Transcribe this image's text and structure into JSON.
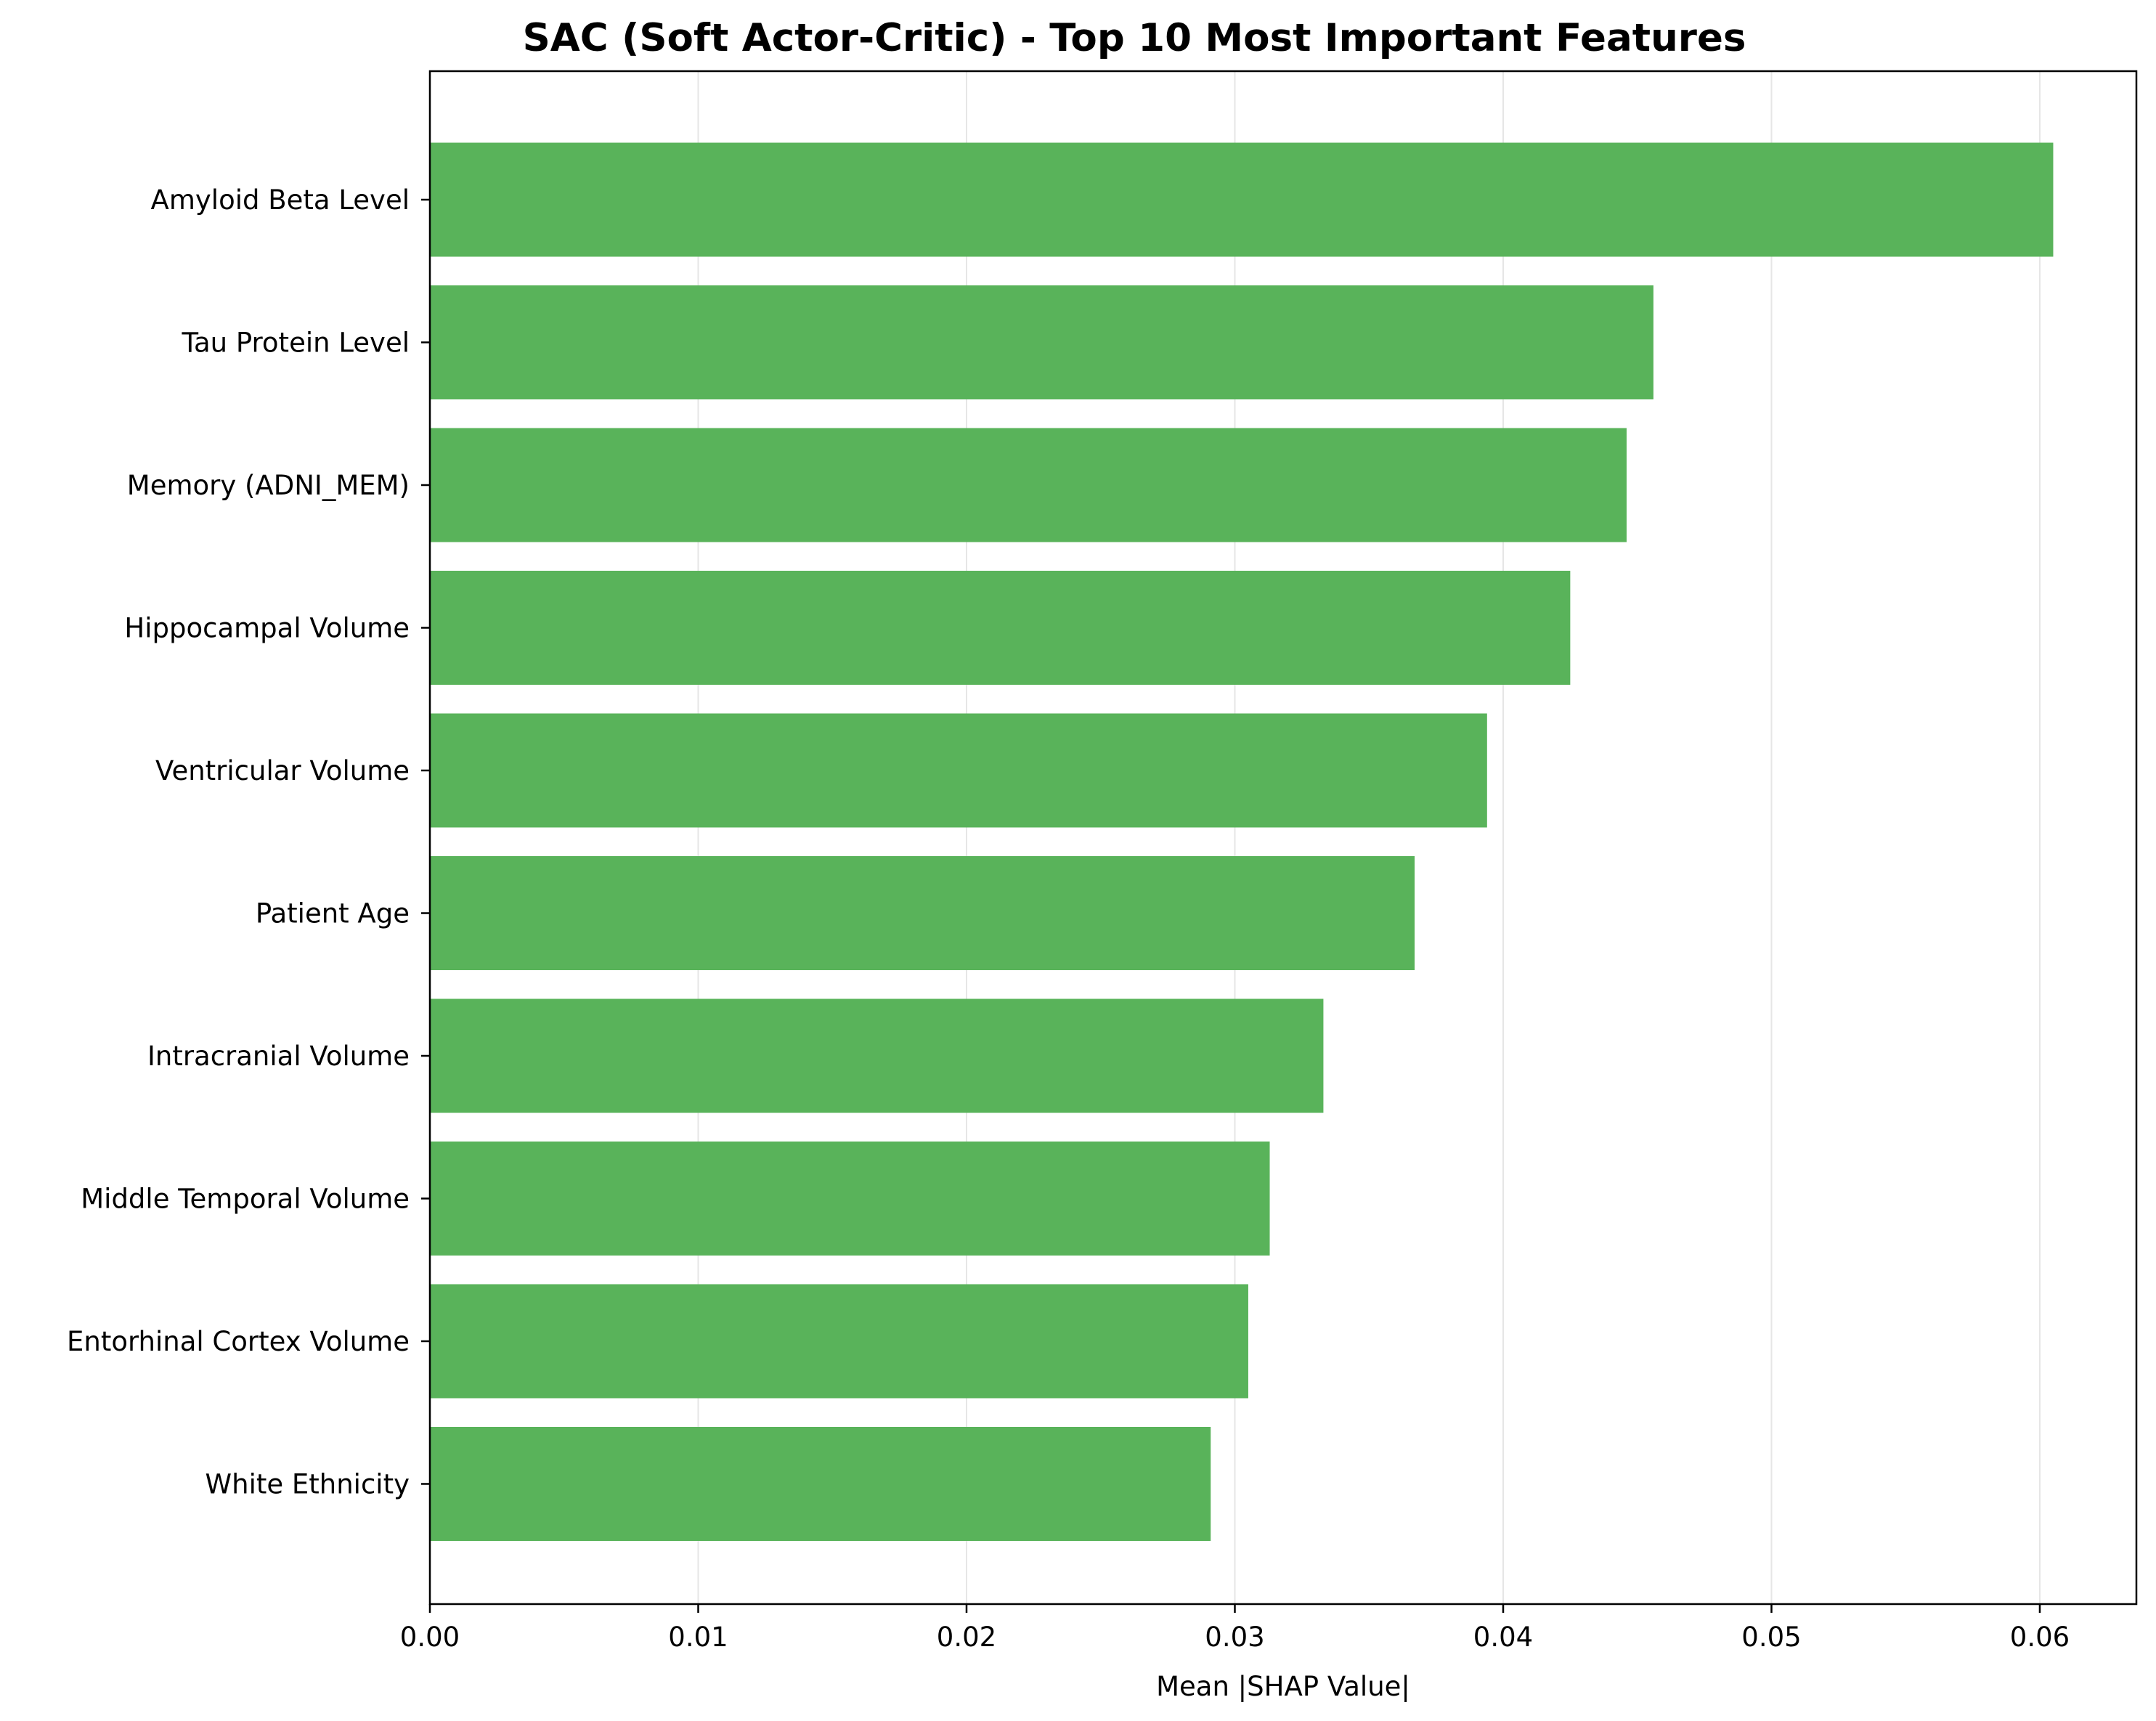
{
  "chart_data": {
    "type": "bar",
    "orientation": "horizontal",
    "title": "SAC (Soft Actor-Critic) - Top 10 Most Important Features",
    "xlabel": "Mean |SHAP Value|",
    "ylabel": "",
    "categories": [
      "Amyloid Beta Level",
      "Tau Protein Level",
      "Memory (ADNI_MEM)",
      "Hippocampal Volume",
      "Ventricular Volume",
      "Patient Age",
      "Intracranial Volume",
      "Middle Temporal Volume",
      "Entorhinal Cortex Volume",
      "White Ethnicity"
    ],
    "values": [
      0.0605,
      0.0456,
      0.0446,
      0.0425,
      0.0394,
      0.0367,
      0.0333,
      0.0313,
      0.0305,
      0.0291
    ],
    "xlim": [
      0,
      0.0636
    ],
    "xticks": [
      "0.00",
      "0.01",
      "0.02",
      "0.03",
      "0.04",
      "0.05",
      "0.06"
    ],
    "xtick_values": [
      0,
      0.01,
      0.02,
      0.03,
      0.04,
      0.05,
      0.06
    ],
    "grid": "x",
    "bar_color": "#59b35a",
    "grid_color": "#e6e6e6"
  }
}
